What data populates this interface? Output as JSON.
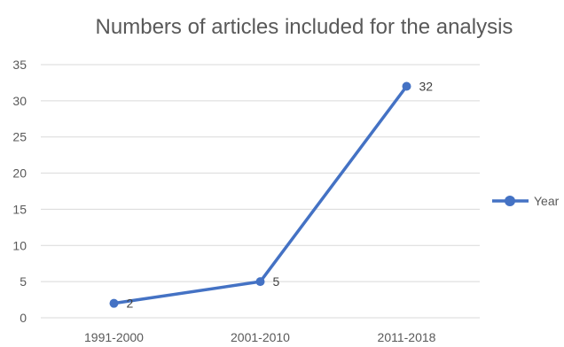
{
  "chart_data": {
    "type": "line",
    "title": "Numbers of articles included for the analysis",
    "xlabel": "",
    "ylabel": "",
    "categories": [
      "1991-2000",
      "2001-2010",
      "2011-2018"
    ],
    "series": [
      {
        "name": "Year",
        "values": [
          2,
          5,
          32
        ],
        "color": "#4472c4",
        "marker": "circle",
        "data_labels": [
          "2",
          "5",
          "32"
        ]
      }
    ],
    "ylim": [
      0,
      35
    ],
    "y_ticks": [
      0,
      5,
      10,
      15,
      20,
      25,
      30,
      35
    ],
    "grid": true,
    "legend": "right"
  }
}
